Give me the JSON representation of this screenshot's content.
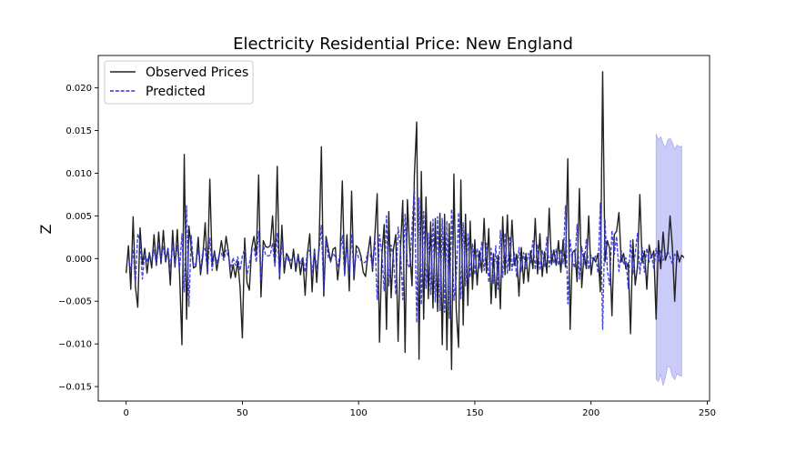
{
  "chart_data": {
    "type": "line",
    "title": "Electricity Residential Price: New England",
    "xlabel": "",
    "ylabel": "Z",
    "xlim": [
      -12,
      251
    ],
    "ylim": [
      -0.0167,
      0.0238
    ],
    "grid": false,
    "legend_position": "top-left",
    "x_ticks": [
      0,
      50,
      100,
      150,
      200,
      250
    ],
    "y_ticks": [
      -0.015,
      -0.01,
      -0.005,
      0.0,
      0.005,
      0.01,
      0.015,
      0.02
    ],
    "x_tick_labels": [
      "0",
      "50",
      "100",
      "150",
      "200",
      "250"
    ],
    "y_tick_labels": [
      "−0.015",
      "−0.010",
      "−0.005",
      "0.000",
      "0.005",
      "0.010",
      "0.015",
      "0.020"
    ],
    "series": [
      {
        "name": "Observed Prices",
        "color": "#222222",
        "style": "solid",
        "x_start": 0,
        "values": [
          -0.0017,
          0.0015,
          -0.0036,
          0.0049,
          -0.0033,
          -0.0057,
          0.0036,
          -0.0007,
          0.0012,
          -0.0017,
          0.0007,
          -0.0011,
          0.0028,
          -0.0008,
          0.0031,
          -0.0006,
          0.0033,
          -0.0004,
          0.0012,
          -0.0031,
          0.0033,
          -0.001,
          0.0034,
          -0.0019,
          -0.0101,
          0.0122,
          -0.0071,
          0.0038,
          0.0013,
          -0.0011,
          -0.0009,
          0.0025,
          -0.0019,
          0.0003,
          0.0042,
          -0.0018,
          0.0093,
          -0.0007,
          0.0009,
          -0.0014,
          0.0003,
          0.0021,
          0.0001,
          0.0026,
          0.0008,
          -0.0023,
          -0.0007,
          -0.0022,
          -0.0003,
          -0.0033,
          -0.0093,
          0.0024,
          -0.0028,
          -0.0037,
          0.0012,
          0.0026,
          0.0004,
          0.0098,
          -0.0045,
          0.0021,
          0.0014,
          0.0013,
          0.0015,
          0.005,
          -0.0006,
          0.0108,
          -0.0024,
          0.0039,
          -0.0017,
          0.0006,
          0.0001,
          -0.0012,
          0.0011,
          -0.0015,
          0.0005,
          -0.0019,
          0.0001,
          -0.0043,
          0.0006,
          0.0029,
          -0.0039,
          0.0011,
          -0.0028,
          0.0016,
          0.0131,
          -0.0044,
          0.0026,
          0.0011,
          -0.0004,
          0.0011,
          0.0013,
          -0.0025,
          0.0001,
          0.0091,
          -0.0018,
          0.0028,
          -0.0038,
          0.0079,
          -0.0025,
          0.0015,
          0.0012,
          0.0003,
          -0.0016,
          -0.0021,
          0.0005,
          0.0026,
          -0.0015,
          0.0027,
          0.0076,
          -0.0098,
          0.0003,
          0.004,
          -0.0083,
          0.0055,
          -0.0046,
          0.0011,
          0.0028,
          -0.0097,
          0.001,
          0.0068,
          -0.011,
          0.0069,
          0.0009,
          -0.0032,
          0.0097,
          0.016,
          -0.0118,
          0.0102,
          -0.0071,
          0.0072,
          -0.0047,
          0.0043,
          -0.0058,
          0.0047,
          -0.0062,
          0.0053,
          -0.0101,
          0.0052,
          -0.0107,
          0.0041,
          -0.013,
          0.0099,
          -0.006,
          -0.0104,
          0.0092,
          -0.0078,
          0.0052,
          -0.0055,
          0.0044,
          -0.0036,
          0.0022,
          -0.0031,
          0.0009,
          -0.0016,
          0.0047,
          -0.0017,
          0.0035,
          -0.0053,
          0.0006,
          -0.0046,
          0.0004,
          -0.0059,
          0.0049,
          -0.0019,
          0.0051,
          -0.0014,
          0.0045,
          -0.0008,
          0.0005,
          -0.0044,
          0.0013,
          -0.0029,
          0.0006,
          -0.0027,
          0.0009,
          -0.0012,
          0.0047,
          -0.0018,
          0.0029,
          -0.0021,
          0.0008,
          -0.0017,
          0.0059,
          -0.0007,
          0.001,
          -0.0008,
          0.0021,
          -0.0016,
          0.0022,
          -0.001,
          0.0117,
          -0.0083,
          0.0007,
          0.001,
          -0.0027,
          0.0082,
          -0.0034,
          0.0006,
          -0.0012,
          0.005,
          -0.0019,
          0.0001,
          -0.0004,
          0.0006,
          -0.0039,
          0.0219,
          -0.0004,
          0.0021,
          0.0012,
          -0.0067,
          0.0028,
          0.0032,
          0.0054,
          -0.0004,
          0.0006,
          -0.0012,
          -0.0005,
          -0.0088,
          0.0022,
          -0.0031,
          -0.0009,
          0.0075,
          -0.0005,
          0.0009,
          -0.0036,
          0.0016,
          0.0001,
          0.0009,
          -0.0071,
          0.0021,
          -0.0012,
          0.0031,
          -0.0002,
          0.0008,
          0.005,
          0.0013,
          -0.005,
          0.0009,
          -0.0004,
          0.0004,
          0.0001
        ]
      },
      {
        "name": "Predicted",
        "color": "#3333dd",
        "style": "dashed",
        "x_start": 1,
        "values": [
          0.0003,
          -0.0014,
          0.0011,
          -0.0029,
          0.0029,
          0.002,
          -0.0024,
          0.0006,
          -0.0004,
          0.0006,
          -0.0004,
          0.001,
          -0.0006,
          0.0015,
          -0.0002,
          0.0014,
          -0.0003,
          0.0011,
          -0.0011,
          0.0017,
          -0.0008,
          0.0015,
          -0.0012,
          0.0029,
          -0.0039,
          0.0062,
          -0.0056,
          0.0027,
          -0.0008,
          -0.0006,
          0.0012,
          -0.0014,
          0.0009,
          0.0013,
          -0.0016,
          0.0024,
          -0.0014,
          0.0008,
          -0.0005,
          0.0004,
          0.0006,
          -0.0002,
          0.001,
          0.0002,
          -0.0011,
          0.0001,
          -0.0008,
          0.0002,
          -0.0014,
          0.0003,
          0.0011,
          -0.0019,
          -0.0006,
          0.0009,
          0.0012,
          -0.0004,
          0.0032,
          -0.0026,
          0.0016,
          0.0004,
          0.0003,
          0.0004,
          0.0018,
          -0.0009,
          0.003,
          -0.0021,
          0.0019,
          -0.0005,
          0.0003,
          -0.0004,
          -0.0001,
          0.0003,
          -0.0008,
          0.0003,
          -0.0006,
          0.0002,
          -0.0016,
          0.0008,
          0.001,
          -0.0018,
          0.0009,
          -0.0012,
          0.0009,
          0.0039,
          -0.0038,
          0.0022,
          0.0001,
          -0.0003,
          0.0006,
          0.0002,
          -0.0011,
          0.0006,
          0.0027,
          -0.002,
          0.0018,
          -0.002,
          0.0029,
          -0.0018,
          0.001,
          0.0001,
          -0.0002,
          -0.0005,
          -0.0004,
          0.0008,
          0.0005,
          -0.001,
          0.0025,
          -0.0048,
          0.0028,
          0.0007,
          -0.0038,
          0.005,
          -0.0032,
          0.0016,
          0.0002,
          -0.0042,
          0.0037,
          0.0013,
          -0.0048,
          0.0052,
          -0.0006,
          -0.0011,
          0.0035,
          0.0084,
          -0.0075,
          0.0071,
          -0.0054,
          0.0055,
          -0.0035,
          0.003,
          -0.0042,
          0.0046,
          -0.0051,
          0.0049,
          -0.0061,
          0.0047,
          -0.0063,
          0.0044,
          -0.007,
          0.0058,
          -0.0049,
          -0.0023,
          0.0054,
          -0.0047,
          0.0042,
          -0.0032,
          0.0029,
          -0.0022,
          0.0017,
          -0.0019,
          0.0012,
          -0.0011,
          0.002,
          -0.0014,
          0.0018,
          -0.0028,
          0.0012,
          -0.0029,
          0.0015,
          -0.0036,
          0.0033,
          -0.0022,
          0.003,
          -0.0018,
          0.0026,
          -0.0014,
          0.0008,
          -0.0021,
          0.0013,
          -0.0015,
          0.0007,
          -0.0012,
          0.0006,
          -0.0005,
          0.0021,
          -0.0013,
          0.0017,
          -0.0014,
          0.001,
          -0.001,
          0.0025,
          -0.001,
          0.0009,
          -0.0006,
          0.0011,
          -0.0008,
          0.0011,
          -0.0006,
          0.0062,
          -0.0053,
          0.0022,
          -0.0003,
          -0.0011,
          0.004,
          -0.0024,
          0.0014,
          -0.0007,
          0.0023,
          -0.0013,
          0.0004,
          -0.0002,
          0.0003,
          -0.0017,
          0.0065,
          -0.0083,
          0.0046,
          -0.0013,
          -0.0031,
          0.0033,
          0.0005,
          0.0026,
          -0.0015,
          0.0009,
          -0.0007,
          0.0001,
          -0.0035,
          0.0021,
          -0.0019,
          0.0006,
          0.003,
          -0.0018,
          0.0013,
          -0.0016,
          0.0012,
          -0.0004,
          0.0005,
          -0.0012,
          0.0012,
          -0.0004,
          0.0009,
          -0.0002,
          0.0006,
          0.0008,
          0.0002,
          -0.0006,
          0.0005,
          -0.0001,
          0.0003
        ]
      }
    ],
    "forecast_band": {
      "color": "#7777ee",
      "x": [
        228,
        229,
        230,
        231,
        232,
        233,
        234,
        235,
        236,
        237,
        238,
        239
      ],
      "upper": [
        0.0146,
        0.0139,
        0.0143,
        0.0135,
        0.013,
        0.0139,
        0.0141,
        0.0136,
        0.0128,
        0.0133,
        0.0131,
        0.0132
      ],
      "lower": [
        -0.0141,
        -0.0144,
        -0.0136,
        -0.0149,
        -0.0139,
        -0.0126,
        -0.0128,
        -0.0138,
        -0.0142,
        -0.0135,
        -0.0137,
        -0.0138
      ]
    }
  }
}
